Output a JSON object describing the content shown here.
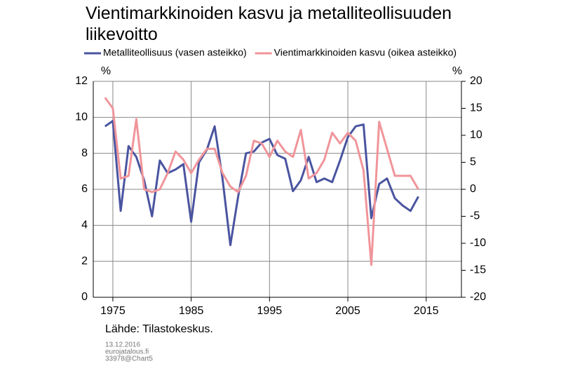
{
  "chart_data": {
    "type": "line",
    "title": "Vientimarkkinoiden kasvu ja metalliteollisuuden liikevoitto",
    "y_label": "%",
    "y2_label": "%",
    "source": "Lähde: Tilastokeskus.",
    "footnotes": [
      "13.12.2016",
      "eurojatalous.fi",
      "33978@Chart5"
    ],
    "x": [
      1974,
      1975,
      1976,
      1977,
      1978,
      1979,
      1980,
      1981,
      1982,
      1983,
      1984,
      1985,
      1986,
      1987,
      1988,
      1989,
      1990,
      1991,
      1992,
      1993,
      1994,
      1995,
      1996,
      1997,
      1998,
      1999,
      2000,
      2001,
      2002,
      2003,
      2004,
      2005,
      2006,
      2007,
      2008,
      2009,
      2010,
      2011,
      2012,
      2013,
      2014
    ],
    "series": [
      {
        "name": "Metalliteollisuus (vasen asteikko)",
        "color": "#4a54a0",
        "axis": "y",
        "values": [
          9.5,
          9.8,
          4.8,
          8.4,
          7.8,
          6.5,
          4.5,
          7.6,
          6.9,
          7.1,
          7.4,
          4.2,
          7.5,
          8.2,
          9.5,
          6.6,
          2.9,
          5.6,
          8.0,
          8.1,
          8.6,
          8.8,
          7.9,
          7.7,
          5.9,
          6.5,
          7.8,
          6.4,
          6.6,
          6.4,
          7.6,
          8.9,
          9.5,
          9.6,
          4.4,
          6.3,
          6.6,
          5.5,
          5.1,
          4.8,
          5.6
        ]
      },
      {
        "name": "Vientimarkkinoiden kasvu (oikea asteikko)",
        "color": "#f0959a",
        "axis": "y2",
        "values": [
          17,
          15,
          2,
          2.5,
          13,
          0,
          -0.5,
          0,
          3,
          7,
          5.5,
          3,
          5.5,
          7.5,
          7.5,
          3,
          0.5,
          -0.5,
          2.5,
          9,
          8.5,
          6,
          9,
          7,
          6,
          11,
          2,
          3,
          5.5,
          10.5,
          8.5,
          10.5,
          9,
          3.5,
          -14,
          12.5,
          7.5,
          2.5,
          2.5,
          2.5,
          0
        ]
      }
    ],
    "xlim": [
      1972.5,
      2019.5
    ],
    "xticks": [
      1975,
      1985,
      1995,
      2005,
      2015
    ],
    "ylim": [
      0,
      12
    ],
    "yticks": [
      0,
      2,
      4,
      6,
      8,
      10,
      12
    ],
    "y2lim": [
      -20,
      20
    ],
    "y2ticks": [
      -20,
      -15,
      -10,
      -5,
      0,
      5,
      10,
      15,
      20
    ],
    "grid": true,
    "legend": "top"
  }
}
